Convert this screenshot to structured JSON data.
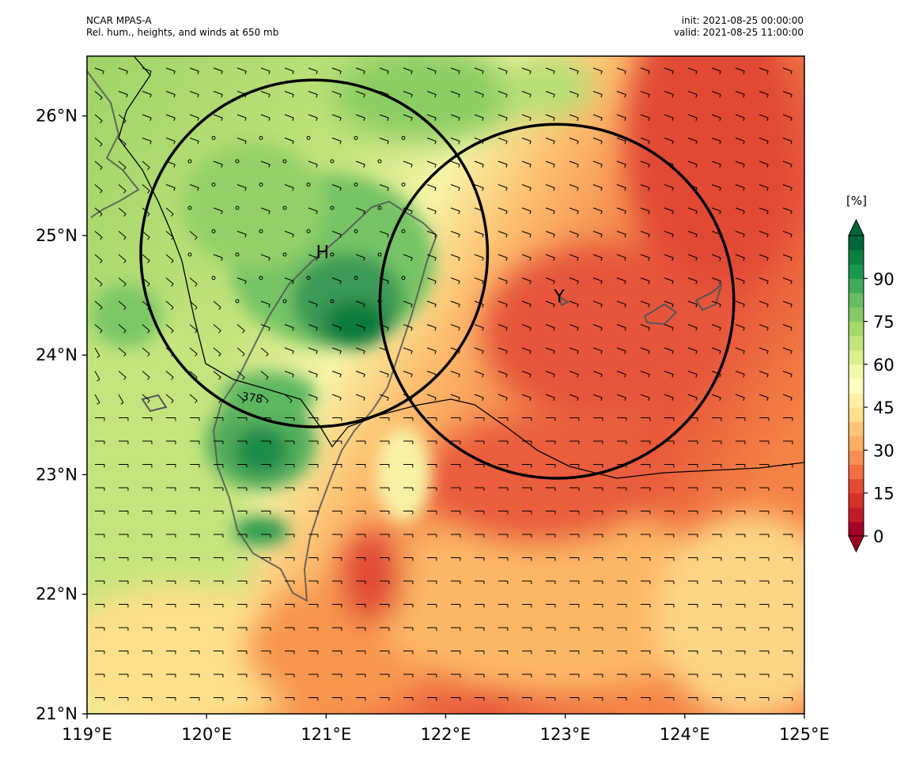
{
  "header": {
    "model": "NCAR MPAS-A",
    "field": "Rel. hum., heights, and winds at 650 mb",
    "init": "init: 2021-08-25 00:00:00",
    "valid": "valid: 2021-08-25 11:00:00"
  },
  "map": {
    "lon_range": [
      119,
      125
    ],
    "lat_range": [
      21,
      26.5
    ],
    "x_ticks": [
      "119°E",
      "120°E",
      "121°E",
      "122°E",
      "123°E",
      "124°E",
      "125°E"
    ],
    "y_ticks": [
      "21°N",
      "22°N",
      "23°N",
      "24°N",
      "25°N",
      "26°N"
    ],
    "markers": [
      {
        "label": "H",
        "lon": 120.97,
        "lat": 24.87
      },
      {
        "label": "Y",
        "lon": 122.95,
        "lat": 24.5
      }
    ],
    "circles": [
      {
        "center_lon": 120.9,
        "center_lat": 24.85,
        "radius_deg": 1.45
      },
      {
        "center_lon": 122.93,
        "center_lat": 24.45,
        "radius_deg": 1.48
      }
    ],
    "contour_label": "378"
  },
  "colorbar": {
    "unit": "[%]",
    "ticks": [
      "0",
      "15",
      "30",
      "45",
      "60",
      "75",
      "90"
    ],
    "colors": [
      "#a50026",
      "#c21b27",
      "#d73027",
      "#e34933",
      "#f46d43",
      "#f78e52",
      "#fdae61",
      "#fec575",
      "#fee08b",
      "#feefa6",
      "#ffffbf",
      "#f1f9aa",
      "#d9ef8b",
      "#c1e47c",
      "#a6d96a",
      "#84ca66",
      "#66bd63",
      "#3faa59",
      "#1a9850",
      "#0b7f3f",
      "#006837"
    ]
  }
}
